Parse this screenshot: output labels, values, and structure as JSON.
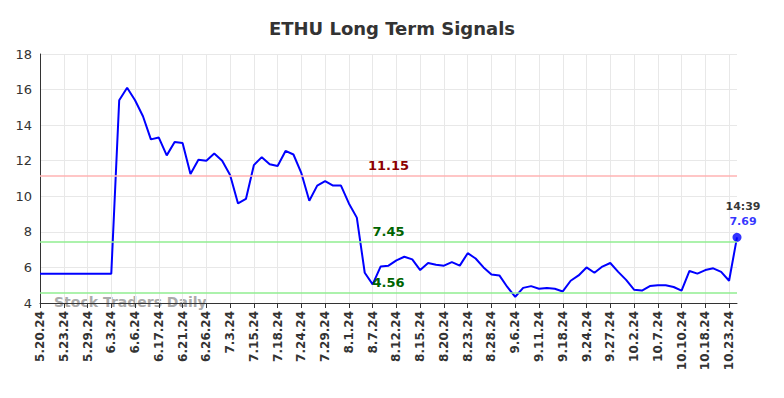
{
  "chart_data": {
    "type": "line",
    "title": "ETHU Long Term Signals",
    "watermark": "Stock Traders Daily",
    "color": "#0000ff",
    "grid": true,
    "categories": [
      "5.20.24",
      null,
      null,
      "5.23.24",
      null,
      null,
      "5.29.24",
      null,
      null,
      "6.3.24",
      null,
      null,
      "6.6.24",
      null,
      null,
      "6.17.24",
      null,
      null,
      "6.21.24",
      null,
      null,
      "6.26.24",
      null,
      null,
      "7.3.24",
      null,
      null,
      "7.15.24",
      null,
      null,
      "7.18.24",
      null,
      null,
      "7.24.24",
      null,
      null,
      "7.29.24",
      null,
      null,
      "8.1.24",
      null,
      null,
      "8.7.24",
      null,
      null,
      "8.12.24",
      null,
      null,
      "8.15.24",
      null,
      null,
      "8.20.24",
      null,
      null,
      "8.23.24",
      null,
      null,
      "8.28.24",
      null,
      null,
      "9.6.24",
      null,
      null,
      "9.11.24",
      null,
      null,
      "9.18.24",
      null,
      null,
      "9.24.24",
      null,
      null,
      "9.27.24",
      null,
      null,
      "10.2.24",
      null,
      null,
      "10.7.24",
      null,
      null,
      "10.10.24",
      null,
      null,
      "10.18.24",
      null,
      null,
      "10.23.24",
      null
    ],
    "values": [
      5.65,
      5.65,
      5.65,
      5.65,
      5.65,
      5.65,
      5.65,
      5.65,
      5.65,
      5.65,
      15.4,
      16.1,
      15.4,
      14.5,
      13.2,
      13.3,
      12.3,
      13.05,
      13.0,
      11.25,
      12.05,
      12.0,
      12.4,
      12.0,
      11.2,
      9.6,
      9.85,
      11.75,
      12.2,
      11.8,
      11.7,
      12.55,
      12.35,
      11.3,
      9.75,
      10.6,
      10.85,
      10.6,
      10.6,
      9.6,
      8.8,
      5.7,
      5.05,
      6.05,
      6.1,
      6.4,
      6.6,
      6.45,
      5.85,
      6.25,
      6.15,
      6.1,
      6.3,
      6.1,
      6.8,
      6.5,
      6.0,
      5.6,
      5.55,
      4.9,
      4.35,
      4.85,
      4.95,
      4.8,
      4.85,
      4.8,
      4.65,
      5.25,
      5.55,
      6.0,
      5.7,
      6.05,
      6.25,
      5.75,
      5.3,
      4.75,
      4.7,
      4.95,
      5.0,
      5.0,
      4.9,
      4.7,
      5.8,
      5.65,
      5.85,
      5.95,
      5.75,
      5.25,
      7.69
    ],
    "ylim": [
      4,
      18
    ],
    "yticks": [
      4,
      6,
      8,
      10,
      12,
      14,
      16,
      18
    ],
    "levels": [
      {
        "value": 11.15,
        "color": "#ffb3b3",
        "label_color": "#8b0000"
      },
      {
        "value": 7.45,
        "color": "#90ee90",
        "label_color": "#006400"
      },
      {
        "value": 4.56,
        "color": "#90ee90",
        "label_color": "#006400"
      }
    ],
    "last_point": {
      "time_label": "14:39",
      "color": "#0000ff"
    }
  }
}
